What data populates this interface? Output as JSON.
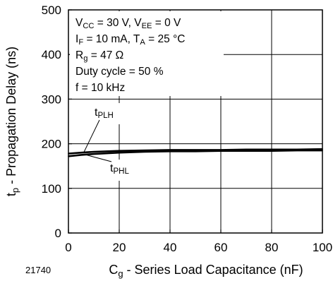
{
  "chart_data": {
    "type": "line",
    "title": "",
    "xlabel": {
      "main": "C",
      "sub": "g",
      "rest": " - Series Load Capacitance (nF)"
    },
    "ylabel": {
      "main": "t",
      "sub": "p",
      "rest": " - Propagation Delay (ns)"
    },
    "xlim": [
      0,
      100
    ],
    "ylim": [
      0,
      500
    ],
    "x_ticks": [
      "0",
      "20",
      "40",
      "60",
      "80",
      "100"
    ],
    "y_ticks": [
      "0",
      "100",
      "200",
      "300",
      "400",
      "500"
    ],
    "grid": true,
    "conditions": [
      [
        {
          "t": "V"
        },
        {
          "t": "CC",
          "sub": true
        },
        {
          "t": " = 30 V, V"
        },
        {
          "t": "EE",
          "sub": true
        },
        {
          "t": " = 0 V"
        }
      ],
      [
        {
          "t": "I"
        },
        {
          "t": "F",
          "sub": true
        },
        {
          "t": " = 10 mA, T"
        },
        {
          "t": "A",
          "sub": true
        },
        {
          "t": " = 25 °C"
        }
      ],
      [
        {
          "t": "R"
        },
        {
          "t": "g",
          "sub": true
        },
        {
          "t": " = 47 Ω"
        }
      ],
      [
        {
          "t": "Duty cycle = 50 %"
        }
      ],
      [
        {
          "t": "f = 10 kHz"
        }
      ]
    ],
    "series": [
      {
        "name": "tPLH",
        "label_main": "t",
        "label_sub": "PLH",
        "x": [
          0,
          5,
          10,
          20,
          30,
          40,
          50,
          60,
          70,
          80,
          90,
          100
        ],
        "values": [
          178,
          180,
          182,
          184,
          185,
          186,
          186,
          186,
          187,
          187,
          187,
          188
        ]
      },
      {
        "name": "tPHL",
        "label_main": "t",
        "label_sub": "PHL",
        "x": [
          0,
          5,
          10,
          20,
          30,
          40,
          50,
          60,
          70,
          80,
          90,
          100
        ],
        "values": [
          172,
          175,
          177,
          180,
          182,
          183,
          183,
          184,
          184,
          184,
          185,
          185
        ]
      }
    ],
    "figure_number": "21740"
  }
}
